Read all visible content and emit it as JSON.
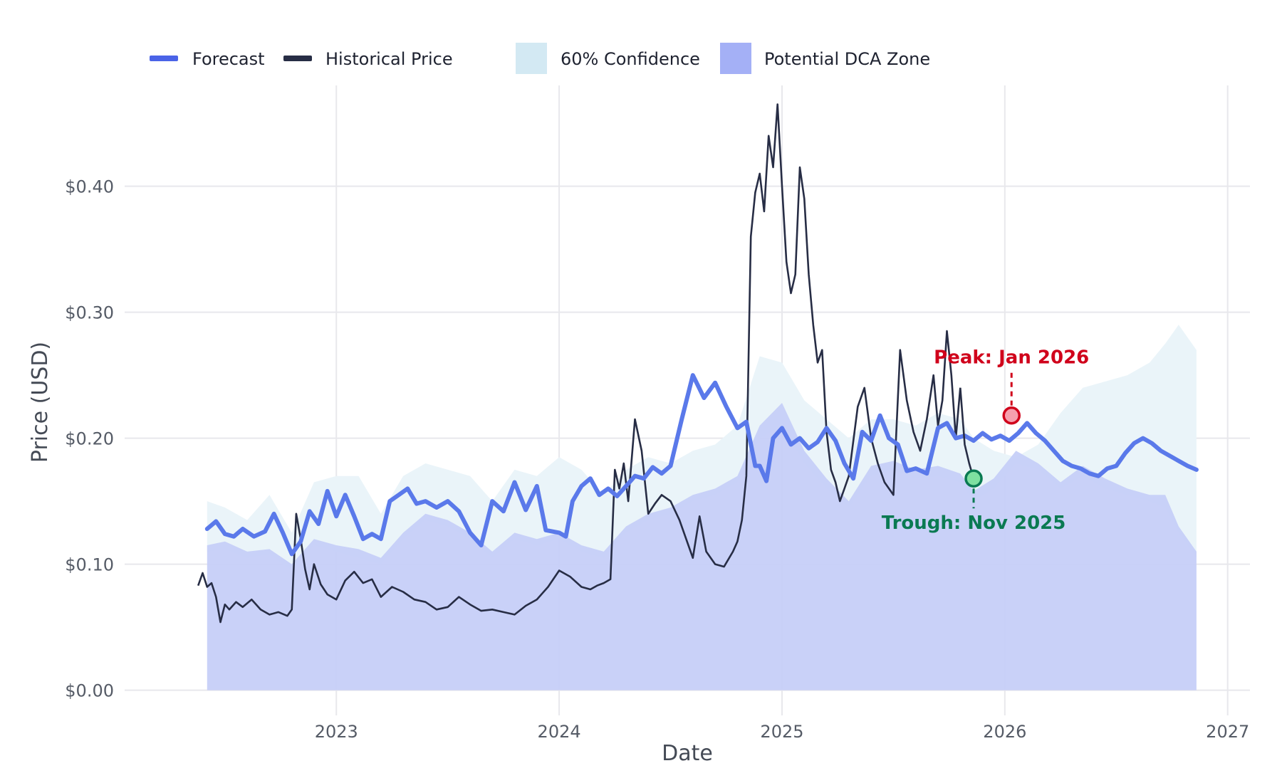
{
  "chart_data": {
    "type": "line",
    "title": "",
    "xlabel": "Date",
    "ylabel": "Price (USD)",
    "xlim": [
      2022.05,
      2027.1
    ],
    "ylim": [
      -0.02,
      0.48
    ],
    "x_ticks": [
      2023,
      2024,
      2025,
      2026,
      2027
    ],
    "x_tick_labels": [
      "2023",
      "2024",
      "2025",
      "2026",
      "2027"
    ],
    "y_ticks": [
      0,
      0.1,
      0.2,
      0.3,
      0.4
    ],
    "y_tick_labels": [
      "$0.00",
      "$0.10",
      "$0.20",
      "$0.30",
      "$0.40"
    ],
    "grid": true,
    "legend": {
      "placement": "top-left",
      "items": [
        {
          "label": "Forecast",
          "kind": "line",
          "color": "#4a63e7"
        },
        {
          "label": "Historical Price",
          "kind": "line",
          "color": "#272d45"
        },
        {
          "label": "60% Confidence",
          "kind": "patch",
          "color": "#d3e9f3"
        },
        {
          "label": "Potential DCA Zone",
          "kind": "patch",
          "color": "#a4b0f6"
        }
      ]
    },
    "colors": {
      "forecast": "#5a79ea",
      "historical": "#272d45",
      "confidence": "#eaf4f9",
      "dca_zone": "#c6cff8",
      "grid": "#e8e8ec",
      "peak": "#d0021b",
      "trough": "#0a7a52"
    },
    "series": [
      {
        "name": "Historical Price",
        "x": [
          2022.38,
          2022.4,
          2022.42,
          2022.44,
          2022.46,
          2022.48,
          2022.5,
          2022.52,
          2022.55,
          2022.58,
          2022.62,
          2022.66,
          2022.7,
          2022.74,
          2022.78,
          2022.8,
          2022.82,
          2022.84,
          2022.86,
          2022.88,
          2022.9,
          2022.93,
          2022.96,
          2023.0,
          2023.04,
          2023.08,
          2023.12,
          2023.16,
          2023.2,
          2023.25,
          2023.3,
          2023.35,
          2023.4,
          2023.45,
          2023.5,
          2023.55,
          2023.6,
          2023.65,
          2023.7,
          2023.75,
          2023.8,
          2023.85,
          2023.9,
          2023.95,
          2024.0,
          2024.05,
          2024.1,
          2024.14,
          2024.17,
          2024.2,
          2024.23,
          2024.25,
          2024.27,
          2024.29,
          2024.31,
          2024.34,
          2024.37,
          2024.4,
          2024.43,
          2024.46,
          2024.5,
          2024.54,
          2024.57,
          2024.6,
          2024.63,
          2024.66,
          2024.7,
          2024.74,
          2024.78,
          2024.8,
          2024.82,
          2024.84,
          2024.86,
          2024.88,
          2024.9,
          2024.92,
          2024.94,
          2024.96,
          2024.98,
          2025.0,
          2025.02,
          2025.04,
          2025.06,
          2025.08,
          2025.1,
          2025.12,
          2025.14,
          2025.16,
          2025.18,
          2025.2,
          2025.22,
          2025.24,
          2025.26,
          2025.28,
          2025.3,
          2025.34,
          2025.37,
          2025.4,
          2025.43,
          2025.46,
          2025.5,
          2025.53,
          2025.56,
          2025.59,
          2025.62,
          2025.65,
          2025.68,
          2025.7,
          2025.72,
          2025.74,
          2025.76,
          2025.78,
          2025.8
        ],
        "values": [
          0.083,
          0.093,
          0.082,
          0.085,
          0.074,
          0.054,
          0.068,
          0.064,
          0.07,
          0.066,
          0.072,
          0.064,
          0.06,
          0.062,
          0.059,
          0.064,
          0.14,
          0.12,
          0.096,
          0.08,
          0.1,
          0.084,
          0.076,
          0.072,
          0.087,
          0.094,
          0.085,
          0.088,
          0.074,
          0.082,
          0.078,
          0.072,
          0.07,
          0.064,
          0.066,
          0.074,
          0.068,
          0.063,
          0.064,
          0.062,
          0.06,
          0.067,
          0.072,
          0.082,
          0.095,
          0.09,
          0.082,
          0.08,
          0.083,
          0.085,
          0.088,
          0.175,
          0.16,
          0.18,
          0.15,
          0.215,
          0.19,
          0.14,
          0.148,
          0.155,
          0.15,
          0.135,
          0.12,
          0.105,
          0.138,
          0.11,
          0.1,
          0.098,
          0.11,
          0.118,
          0.135,
          0.17,
          0.36,
          0.395,
          0.41,
          0.38,
          0.44,
          0.415,
          0.465,
          0.4,
          0.34,
          0.315,
          0.33,
          0.415,
          0.39,
          0.33,
          0.29,
          0.26,
          0.27,
          0.205,
          0.175,
          0.165,
          0.15,
          0.16,
          0.17,
          0.225,
          0.24,
          0.2,
          0.18,
          0.165,
          0.155,
          0.27,
          0.23,
          0.205,
          0.19,
          0.215,
          0.25,
          0.21,
          0.23,
          0.285,
          0.25,
          0.2,
          0.24
        ]
      },
      {
        "name": "Historical Price (late)",
        "x": [
          2025.8,
          2025.82,
          2025.84,
          2025.86
        ],
        "values": [
          0.24,
          0.195,
          0.18,
          0.168
        ]
      },
      {
        "name": "Forecast",
        "x": [
          2022.42,
          2022.46,
          2022.5,
          2022.54,
          2022.58,
          2022.63,
          2022.68,
          2022.72,
          2022.76,
          2022.8,
          2022.84,
          2022.88,
          2022.92,
          2022.96,
          2023.0,
          2023.04,
          2023.08,
          2023.12,
          2023.16,
          2023.2,
          2023.24,
          2023.28,
          2023.32,
          2023.36,
          2023.4,
          2023.45,
          2023.5,
          2023.55,
          2023.6,
          2023.65,
          2023.7,
          2023.75,
          2023.8,
          2023.85,
          2023.9,
          2023.94,
          2024.0,
          2024.03,
          2024.06,
          2024.1,
          2024.14,
          2024.18,
          2024.22,
          2024.26,
          2024.3,
          2024.34,
          2024.38,
          2024.42,
          2024.46,
          2024.5,
          2024.55,
          2024.6,
          2024.65,
          2024.7,
          2024.75,
          2024.8,
          2024.84,
          2024.88,
          2024.9,
          2024.93,
          2024.96,
          2025.0,
          2025.04,
          2025.08,
          2025.12,
          2025.16,
          2025.2,
          2025.24,
          2025.28,
          2025.32,
          2025.36,
          2025.4,
          2025.44,
          2025.48,
          2025.52,
          2025.56,
          2025.6,
          2025.65,
          2025.7,
          2025.74,
          2025.78,
          2025.82,
          2025.86,
          2025.9,
          2025.94,
          2025.98,
          2026.02,
          2026.06,
          2026.1,
          2026.14,
          2026.18,
          2026.22,
          2026.26,
          2026.3,
          2026.34,
          2026.38,
          2026.42,
          2026.46,
          2026.5,
          2026.54,
          2026.58,
          2026.62,
          2026.66,
          2026.7,
          2026.74,
          2026.78,
          2026.82,
          2026.86
        ],
        "values": [
          0.128,
          0.134,
          0.124,
          0.122,
          0.128,
          0.122,
          0.126,
          0.14,
          0.125,
          0.108,
          0.118,
          0.142,
          0.132,
          0.158,
          0.138,
          0.155,
          0.138,
          0.12,
          0.124,
          0.12,
          0.15,
          0.155,
          0.16,
          0.148,
          0.15,
          0.145,
          0.15,
          0.142,
          0.125,
          0.115,
          0.15,
          0.142,
          0.165,
          0.143,
          0.162,
          0.127,
          0.125,
          0.122,
          0.15,
          0.162,
          0.168,
          0.155,
          0.16,
          0.154,
          0.162,
          0.17,
          0.168,
          0.177,
          0.172,
          0.178,
          0.215,
          0.25,
          0.232,
          0.244,
          0.225,
          0.208,
          0.213,
          0.178,
          0.178,
          0.166,
          0.2,
          0.208,
          0.195,
          0.2,
          0.192,
          0.197,
          0.208,
          0.198,
          0.18,
          0.168,
          0.205,
          0.198,
          0.218,
          0.2,
          0.195,
          0.174,
          0.176,
          0.172,
          0.208,
          0.212,
          0.2,
          0.202,
          0.198,
          0.204,
          0.199,
          0.202,
          0.198,
          0.204,
          0.212,
          0.204,
          0.198,
          0.19,
          0.182,
          0.178,
          0.176,
          0.172,
          0.17,
          0.176,
          0.178,
          0.188,
          0.196,
          0.2,
          0.196,
          0.19,
          0.186,
          0.182,
          0.178,
          0.175
        ]
      }
    ],
    "confidence_band": {
      "label": "60% Confidence",
      "x": [
        2022.42,
        2022.5,
        2022.6,
        2022.7,
        2022.8,
        2022.9,
        2023.0,
        2023.1,
        2023.2,
        2023.3,
        2023.4,
        2023.5,
        2023.6,
        2023.7,
        2023.8,
        2023.9,
        2024.0,
        2024.1,
        2024.2,
        2024.3,
        2024.4,
        2024.5,
        2024.6,
        2024.7,
        2024.8,
        2024.9,
        2025.0,
        2025.1,
        2025.2,
        2025.3,
        2025.4,
        2025.5,
        2025.6,
        2025.7,
        2025.8,
        2025.86,
        2025.95,
        2026.05,
        2026.15,
        2026.25,
        2026.35,
        2026.45,
        2026.55,
        2026.65,
        2026.72,
        2026.78,
        2026.86
      ],
      "upper": [
        0.15,
        0.145,
        0.135,
        0.155,
        0.125,
        0.165,
        0.17,
        0.17,
        0.14,
        0.17,
        0.18,
        0.175,
        0.17,
        0.15,
        0.175,
        0.17,
        0.185,
        0.175,
        0.155,
        0.175,
        0.185,
        0.18,
        0.19,
        0.195,
        0.21,
        0.265,
        0.26,
        0.23,
        0.215,
        0.2,
        0.215,
        0.215,
        0.21,
        0.22,
        0.215,
        0.2,
        0.19,
        0.185,
        0.195,
        0.22,
        0.24,
        0.245,
        0.25,
        0.26,
        0.275,
        0.29,
        0.27
      ],
      "lower": [
        0.11,
        0.112,
        0.105,
        0.108,
        0.095,
        0.115,
        0.11,
        0.105,
        0.1,
        0.12,
        0.135,
        0.13,
        0.12,
        0.105,
        0.12,
        0.115,
        0.12,
        0.11,
        0.105,
        0.125,
        0.135,
        0.14,
        0.15,
        0.155,
        0.165,
        0.2,
        0.21,
        0.18,
        0.16,
        0.145,
        0.17,
        0.175,
        0.168,
        0.17,
        0.165,
        0.15,
        0.16,
        0.18,
        0.175,
        0.16,
        0.17,
        0.16,
        0.155,
        0.15,
        0.145,
        0.125,
        0.105
      ]
    },
    "dca_zone": {
      "label": "Potential DCA Zone",
      "x": [
        2022.42,
        2022.5,
        2022.6,
        2022.7,
        2022.8,
        2022.9,
        2023.0,
        2023.1,
        2023.2,
        2023.3,
        2023.4,
        2023.5,
        2023.6,
        2023.7,
        2023.8,
        2023.9,
        2024.0,
        2024.1,
        2024.2,
        2024.3,
        2024.4,
        2024.5,
        2024.6,
        2024.7,
        2024.8,
        2024.9,
        2025.0,
        2025.1,
        2025.2,
        2025.3,
        2025.4,
        2025.5,
        2025.6,
        2025.7,
        2025.8,
        2025.86,
        2025.95,
        2026.05,
        2026.15,
        2026.25,
        2026.35,
        2026.45,
        2026.55,
        2026.65,
        2026.72,
        2026.78,
        2026.86
      ],
      "upper": [
        0.115,
        0.118,
        0.11,
        0.112,
        0.1,
        0.12,
        0.115,
        0.112,
        0.105,
        0.125,
        0.14,
        0.135,
        0.125,
        0.11,
        0.125,
        0.12,
        0.125,
        0.115,
        0.11,
        0.13,
        0.14,
        0.145,
        0.155,
        0.16,
        0.17,
        0.21,
        0.228,
        0.19,
        0.168,
        0.15,
        0.178,
        0.182,
        0.175,
        0.178,
        0.172,
        0.158,
        0.168,
        0.19,
        0.18,
        0.165,
        0.178,
        0.168,
        0.16,
        0.155,
        0.155,
        0.13,
        0.11
      ],
      "lower": 0
    },
    "annotations": [
      {
        "label": "Peak: Jan 2026",
        "x": 2026.03,
        "y": 0.218,
        "kind": "peak"
      },
      {
        "label": "Trough: Nov 2025",
        "x": 2025.86,
        "y": 0.168,
        "kind": "trough"
      }
    ]
  }
}
